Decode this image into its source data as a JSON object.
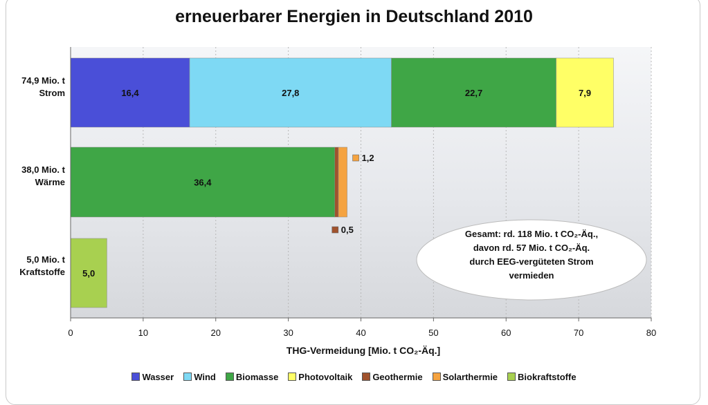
{
  "title_line1": "",
  "title_line2": "erneuerbarer Energien in Deutschland 2010",
  "annotation": {
    "lines": [
      "Gesamt: rd. 118 Mio. t CO₂-Äq.,",
      "davon rd. 57 Mio. t CO₂-Äq.",
      "durch EEG-vergüteten Strom",
      "vermieden"
    ]
  },
  "chart_data": {
    "type": "bar",
    "orientation": "horizontal",
    "stacked": true,
    "categories": [
      {
        "line1": "74,9 Mio. t",
        "line2": "Strom"
      },
      {
        "line1": "38,0 Mio. t",
        "line2": "Wärme"
      },
      {
        "line1": "5,0 Mio. t",
        "line2": "Kraftstoffe"
      }
    ],
    "series": [
      {
        "name": "Wasser",
        "color": "#4a4fd8",
        "values": [
          16.4,
          0,
          0
        ],
        "labels": [
          "16,4",
          "",
          ""
        ]
      },
      {
        "name": "Wind",
        "color": "#7ed9f4",
        "values": [
          27.8,
          0,
          0
        ],
        "labels": [
          "27,8",
          "",
          ""
        ]
      },
      {
        "name": "Biomasse",
        "color": "#3fa646",
        "values": [
          22.7,
          36.4,
          0
        ],
        "labels": [
          "22,7",
          "36,4",
          ""
        ]
      },
      {
        "name": "Photovoltaik",
        "color": "#ffff66",
        "values": [
          7.9,
          0,
          0
        ],
        "labels": [
          "7,9",
          "",
          ""
        ]
      },
      {
        "name": "Geothermie",
        "color": "#a0522d",
        "values": [
          0,
          0.5,
          0
        ],
        "labels": [
          "",
          "0,5",
          ""
        ]
      },
      {
        "name": "Solarthermie",
        "color": "#f5a340",
        "values": [
          0,
          1.2,
          0
        ],
        "labels": [
          "",
          "1,2",
          ""
        ]
      },
      {
        "name": "Biokraftstoffe",
        "color": "#a8d050",
        "values": [
          0,
          0,
          5.0
        ],
        "labels": [
          "",
          "",
          "5,0"
        ]
      }
    ],
    "xlabel": "THG-Vermeidung [Mio. t CO₂-Äq.]",
    "xlim": [
      0,
      80
    ],
    "xticks": [
      "0",
      "10",
      "20",
      "30",
      "40",
      "50",
      "60",
      "70",
      "80"
    ],
    "grid": true,
    "legend_position": "bottom"
  }
}
